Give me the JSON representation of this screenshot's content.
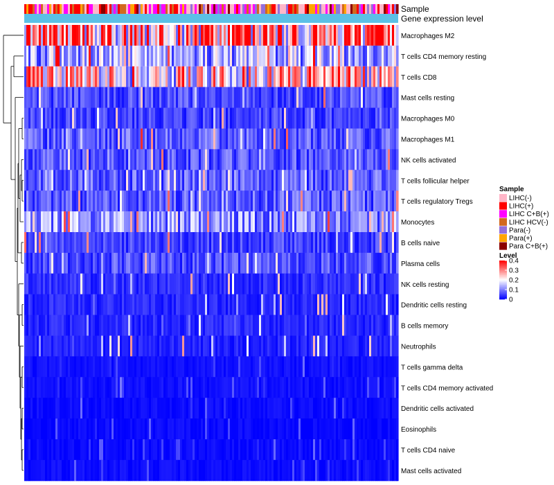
{
  "chart_data": {
    "type": "heatmap",
    "title": "",
    "annotation_tracks": [
      {
        "name": "Sample"
      },
      {
        "name": "Gene expression level"
      }
    ],
    "rows": [
      {
        "label": "Macrophages M2",
        "mean": 0.3
      },
      {
        "label": "T cells CD4 memory resting",
        "mean": 0.13
      },
      {
        "label": "T cells CD8",
        "mean": 0.21
      },
      {
        "label": "Mast cells resting",
        "mean": 0.06
      },
      {
        "label": "Macrophages M0",
        "mean": 0.05
      },
      {
        "label": "Macrophages M1",
        "mean": 0.07
      },
      {
        "label": "NK cells activated",
        "mean": 0.065
      },
      {
        "label": "T cells follicular helper",
        "mean": 0.075
      },
      {
        "label": "T cells regulatory  Tregs",
        "mean": 0.07
      },
      {
        "label": "Monocytes",
        "mean": 0.11
      },
      {
        "label": "B cells naive",
        "mean": 0.05
      },
      {
        "label": "Plasma cells",
        "mean": 0.06
      },
      {
        "label": "NK cells resting",
        "mean": 0.035
      },
      {
        "label": "Dendritic cells resting",
        "mean": 0.03
      },
      {
        "label": "B cells memory",
        "mean": 0.03
      },
      {
        "label": "Neutrophils",
        "mean": 0.025
      },
      {
        "label": "T cells gamma delta",
        "mean": 0.012
      },
      {
        "label": "T cells CD4 memory activated",
        "mean": 0.012
      },
      {
        "label": "Dendritic cells activated",
        "mean": 0.008
      },
      {
        "label": "Eosinophils",
        "mean": 0.006
      },
      {
        "label": "T cells CD4 naive",
        "mean": 0.006
      },
      {
        "label": "Mast cells activated",
        "mean": 0.01
      }
    ],
    "n_samples_estimate": 180,
    "legend_sample": {
      "title": "Sample",
      "items": [
        {
          "label": "LIHC(-)",
          "color": "#ffb6c8"
        },
        {
          "label": "LIHC(+)",
          "color": "#ff0000"
        },
        {
          "label": "LIHC C+B(+)",
          "color": "#ff00ff"
        },
        {
          "label": "LIHC HCV(-)",
          "color": "#d2691e"
        },
        {
          "label": "Para(-)",
          "color": "#9370db"
        },
        {
          "label": "Para(+)",
          "color": "#ffa500"
        },
        {
          "label": "Para C+B(+)",
          "color": "#8b0000"
        }
      ]
    },
    "legend_level": {
      "title": "Level",
      "ticks": [
        "0.4",
        "0.3",
        "0.2",
        "0.1",
        "0"
      ],
      "range": [
        0,
        0.4
      ],
      "colors": {
        "low": "#0000ff",
        "mid": "#ffffff",
        "high": "#ff0000"
      }
    },
    "expression_track_color": "#5bc0e6"
  }
}
